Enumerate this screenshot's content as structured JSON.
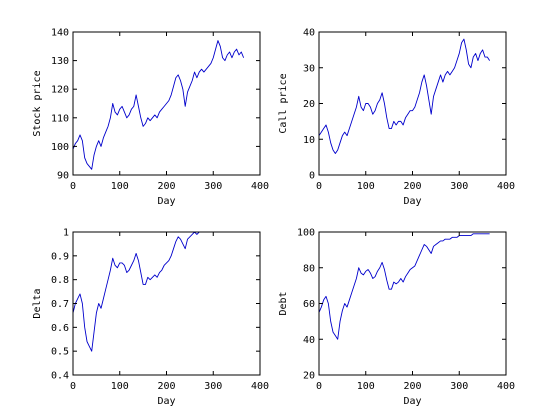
{
  "chart_data": [
    {
      "type": "line",
      "xlabel": "Day",
      "ylabel": "Stock price",
      "xlim": [
        0,
        400
      ],
      "ylim": [
        90,
        140
      ],
      "xticks": [
        0,
        100,
        200,
        300,
        400
      ],
      "yticks": [
        90,
        100,
        110,
        120,
        130,
        140
      ],
      "ytick_labels": [
        "90",
        "100",
        "110",
        "120",
        "130",
        "140"
      ],
      "grid": false,
      "series": [
        {
          "color": "#0000cc",
          "x": [
            0,
            5,
            10,
            15,
            20,
            25,
            30,
            35,
            40,
            45,
            50,
            55,
            60,
            65,
            70,
            75,
            80,
            85,
            90,
            95,
            100,
            105,
            110,
            115,
            120,
            125,
            130,
            135,
            140,
            145,
            150,
            155,
            160,
            165,
            170,
            175,
            180,
            185,
            190,
            195,
            200,
            205,
            210,
            215,
            220,
            225,
            230,
            235,
            240,
            245,
            250,
            255,
            260,
            265,
            270,
            275,
            280,
            285,
            290,
            295,
            300,
            305,
            310,
            315,
            320,
            325,
            330,
            335,
            340,
            345,
            350,
            355,
            360,
            365
          ],
          "y": [
            99,
            101,
            102,
            104,
            102,
            96,
            94,
            93,
            92,
            97,
            100,
            102,
            100,
            103,
            105,
            107,
            110,
            115,
            112,
            111,
            113,
            114,
            112,
            110,
            111,
            113,
            114,
            118,
            114,
            110,
            107,
            108,
            110,
            109,
            110,
            111,
            110,
            112,
            113,
            114,
            115,
            116,
            118,
            121,
            124,
            125,
            123,
            120,
            114,
            119,
            121,
            123,
            126,
            124,
            126,
            127,
            126,
            127,
            128,
            129,
            131,
            134,
            137,
            135,
            131,
            130,
            132,
            133,
            131,
            133,
            134,
            132,
            133,
            131
          ]
        }
      ]
    },
    {
      "type": "line",
      "xlabel": "Day",
      "ylabel": "Call price",
      "xlim": [
        0,
        400
      ],
      "ylim": [
        0,
        40
      ],
      "xticks": [
        0,
        100,
        200,
        300,
        400
      ],
      "yticks": [
        0,
        10,
        20,
        30,
        40
      ],
      "ytick_labels": [
        "0",
        "10",
        "20",
        "30",
        "40"
      ],
      "grid": false,
      "series": [
        {
          "color": "#0000cc",
          "x": [
            0,
            5,
            10,
            15,
            20,
            25,
            30,
            35,
            40,
            45,
            50,
            55,
            60,
            65,
            70,
            75,
            80,
            85,
            90,
            95,
            100,
            105,
            110,
            115,
            120,
            125,
            130,
            135,
            140,
            145,
            150,
            155,
            160,
            165,
            170,
            175,
            180,
            185,
            190,
            195,
            200,
            205,
            210,
            215,
            220,
            225,
            230,
            235,
            240,
            245,
            250,
            255,
            260,
            265,
            270,
            275,
            280,
            285,
            290,
            295,
            300,
            305,
            310,
            315,
            320,
            325,
            330,
            335,
            340,
            345,
            350,
            355,
            360,
            365
          ],
          "y": [
            11,
            12,
            13,
            14,
            12,
            9,
            7,
            6,
            7,
            9,
            11,
            12,
            11,
            13,
            15,
            17,
            19,
            22,
            19,
            18,
            20,
            20,
            19,
            17,
            18,
            20,
            21,
            23,
            20,
            16,
            13,
            13,
            15,
            14,
            15,
            15,
            14,
            16,
            17,
            18,
            18,
            19,
            21,
            23,
            26,
            28,
            25,
            21,
            17,
            22,
            24,
            26,
            28,
            26,
            28,
            29,
            28,
            29,
            30,
            32,
            34,
            37,
            38,
            35,
            31,
            30,
            33,
            34,
            32,
            34,
            35,
            33,
            33,
            32
          ]
        }
      ]
    },
    {
      "type": "line",
      "xlabel": "Day",
      "ylabel": "Delta",
      "xlim": [
        0,
        400
      ],
      "ylim": [
        0.4,
        1.0
      ],
      "xticks": [
        0,
        100,
        200,
        300,
        400
      ],
      "yticks": [
        0.4,
        0.5,
        0.6,
        0.7,
        0.8,
        0.9,
        1.0
      ],
      "ytick_labels": [
        "0.4",
        "0.5",
        "0.6",
        "0.7",
        "0.8",
        "0.9",
        "1"
      ],
      "grid": false,
      "series": [
        {
          "color": "#0000cc",
          "x": [
            0,
            5,
            10,
            15,
            20,
            25,
            30,
            35,
            40,
            45,
            50,
            55,
            60,
            65,
            70,
            75,
            80,
            85,
            90,
            95,
            100,
            105,
            110,
            115,
            120,
            125,
            130,
            135,
            140,
            145,
            150,
            155,
            160,
            165,
            170,
            175,
            180,
            185,
            190,
            195,
            200,
            205,
            210,
            215,
            220,
            225,
            230,
            235,
            240,
            245,
            250,
            255,
            260,
            265,
            270,
            275,
            280,
            285,
            290,
            295,
            300,
            305,
            310,
            315,
            320,
            325,
            330,
            335,
            340,
            345,
            350,
            355,
            360,
            365
          ],
          "y": [
            0.66,
            0.7,
            0.72,
            0.74,
            0.7,
            0.6,
            0.54,
            0.52,
            0.5,
            0.58,
            0.66,
            0.7,
            0.68,
            0.72,
            0.76,
            0.8,
            0.84,
            0.89,
            0.86,
            0.85,
            0.87,
            0.87,
            0.86,
            0.83,
            0.84,
            0.86,
            0.88,
            0.91,
            0.88,
            0.83,
            0.78,
            0.78,
            0.81,
            0.8,
            0.81,
            0.82,
            0.81,
            0.83,
            0.84,
            0.86,
            0.87,
            0.88,
            0.9,
            0.93,
            0.96,
            0.98,
            0.97,
            0.95,
            0.93,
            0.97,
            0.98,
            0.99,
            1.0,
            0.99,
            1.0,
            1.0,
            1.0,
            1.0,
            1.0,
            1.0,
            1.0,
            1.0,
            1.0,
            1.0,
            1.0,
            1.0,
            1.0,
            1.0,
            1.0,
            1.0,
            1.0,
            1.0,
            1.0,
            1.0
          ]
        }
      ]
    },
    {
      "type": "line",
      "xlabel": "Day",
      "ylabel": "Debt",
      "xlim": [
        0,
        400
      ],
      "ylim": [
        20,
        100
      ],
      "xticks": [
        0,
        100,
        200,
        300,
        400
      ],
      "yticks": [
        20,
        40,
        60,
        80,
        100
      ],
      "ytick_labels": [
        "20",
        "40",
        "60",
        "80",
        "100"
      ],
      "grid": false,
      "series": [
        {
          "color": "#0000cc",
          "x": [
            0,
            5,
            10,
            15,
            20,
            25,
            30,
            35,
            40,
            45,
            50,
            55,
            60,
            65,
            70,
            75,
            80,
            85,
            90,
            95,
            100,
            105,
            110,
            115,
            120,
            125,
            130,
            135,
            140,
            145,
            150,
            155,
            160,
            165,
            170,
            175,
            180,
            185,
            190,
            195,
            200,
            205,
            210,
            215,
            220,
            225,
            230,
            235,
            240,
            245,
            250,
            255,
            260,
            265,
            270,
            275,
            280,
            285,
            290,
            295,
            300,
            305,
            310,
            315,
            320,
            325,
            330,
            335,
            340,
            345,
            350,
            355,
            360,
            365
          ],
          "y": [
            55,
            58,
            62,
            64,
            60,
            50,
            44,
            42,
            40,
            50,
            56,
            60,
            58,
            62,
            66,
            70,
            74,
            80,
            77,
            76,
            78,
            79,
            77,
            74,
            75,
            78,
            80,
            83,
            79,
            73,
            68,
            68,
            72,
            71,
            72,
            74,
            72,
            75,
            77,
            79,
            80,
            81,
            84,
            87,
            90,
            93,
            92,
            90,
            88,
            92,
            93,
            94,
            95,
            95,
            96,
            96,
            96,
            97,
            97,
            97,
            98,
            98,
            98,
            98,
            98,
            98,
            99,
            99,
            99,
            99,
            99,
            99,
            99,
            99
          ]
        }
      ]
    }
  ]
}
